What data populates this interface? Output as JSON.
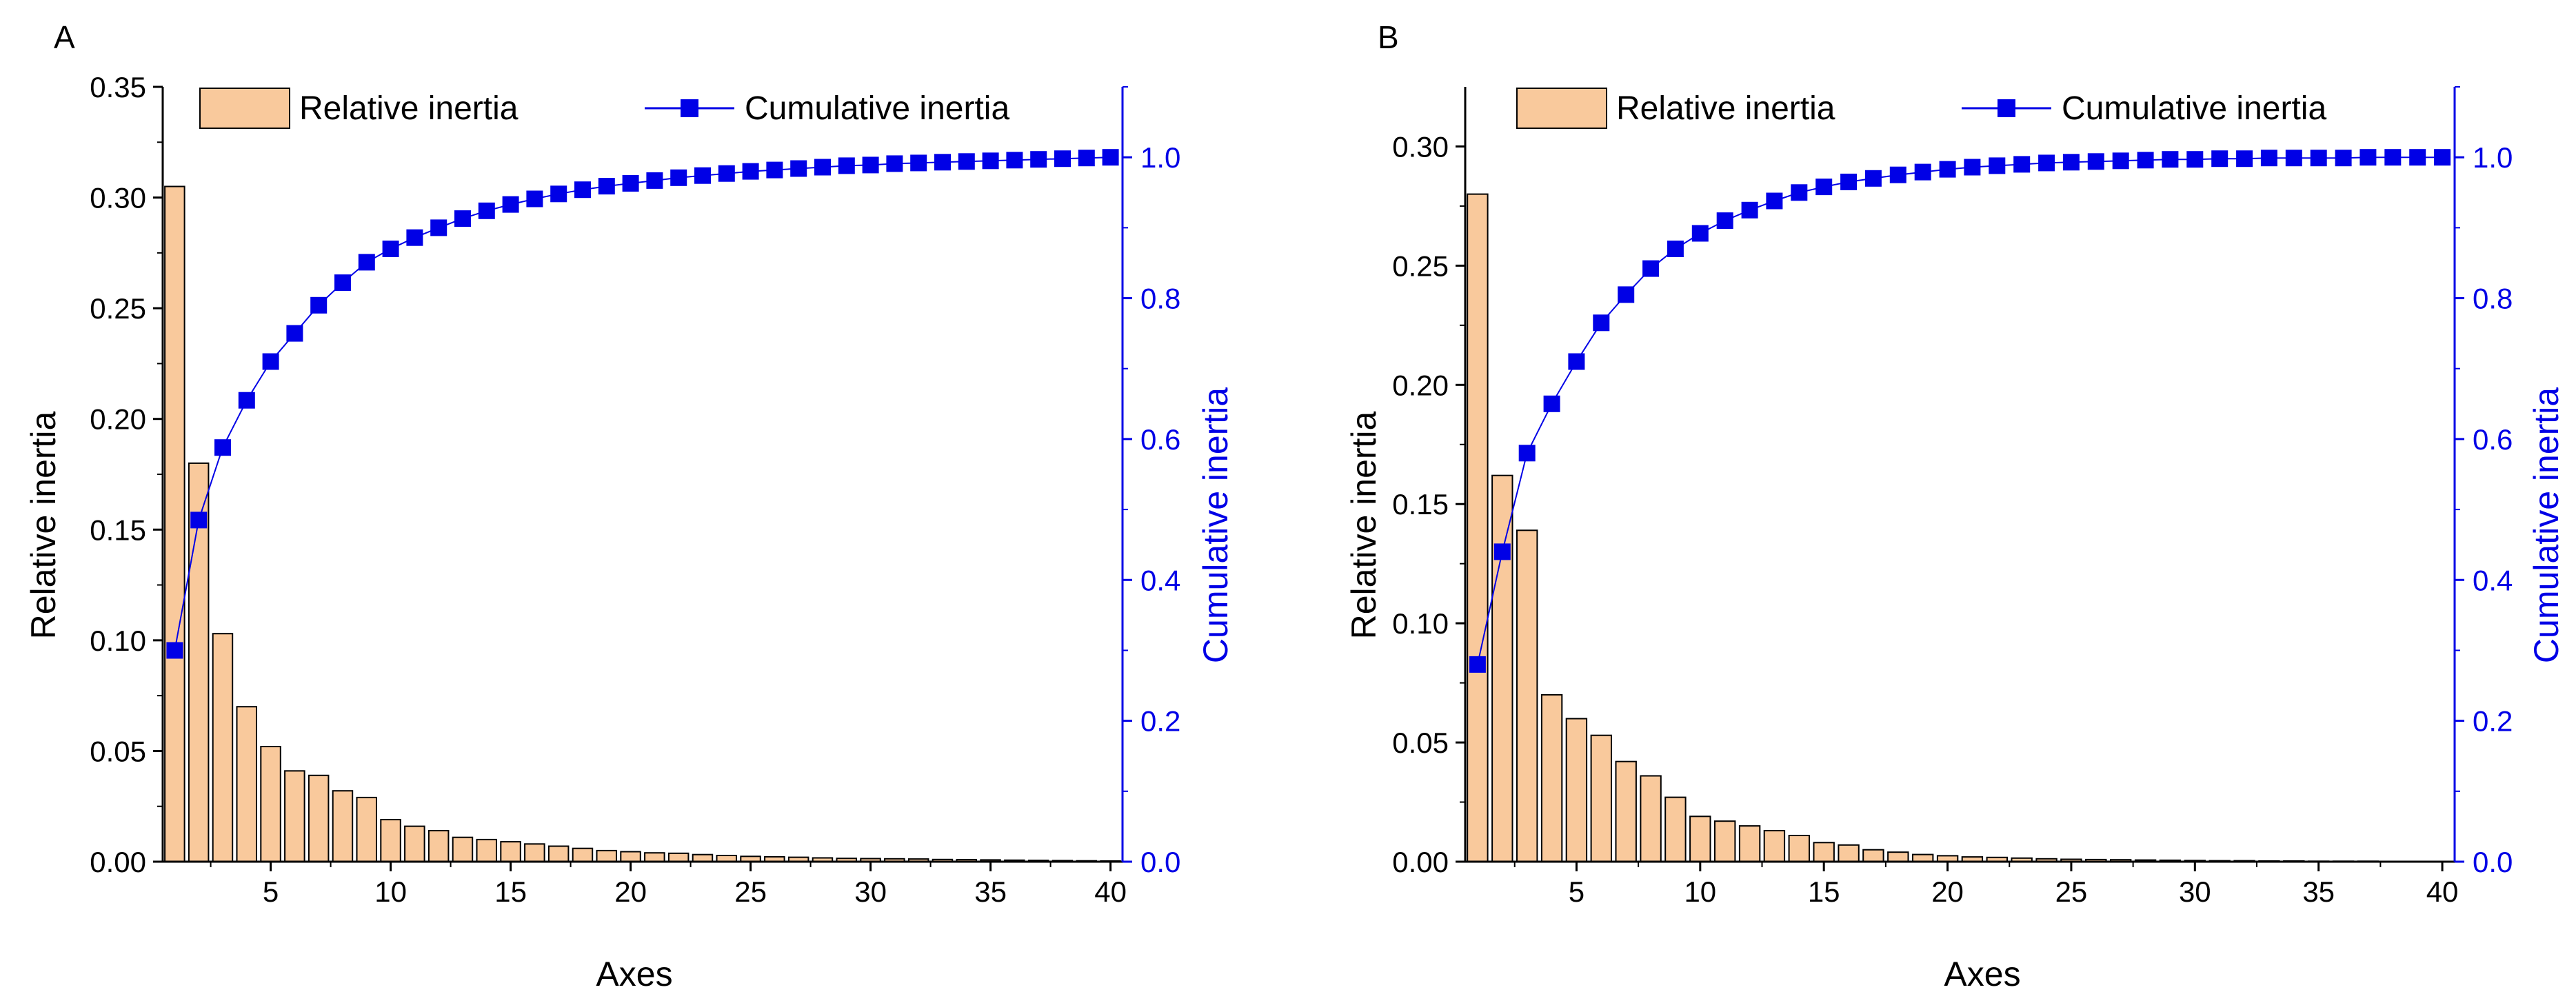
{
  "panels": [
    {
      "label": "A",
      "legend": {
        "bar_label": "Relative inertia",
        "line_label": "Cumulative inertia"
      },
      "bar_color": "#f9c99c",
      "line_color": "#0000e6",
      "left_axis_color": "#000000",
      "right_axis_color": "#0000e6"
    },
    {
      "label": "B",
      "legend": {
        "bar_label": "Relative inertia",
        "line_label": "Cumulative inertia"
      },
      "bar_color": "#f9c99c",
      "line_color": "#0000e6",
      "left_axis_color": "#000000",
      "right_axis_color": "#0000e6"
    }
  ],
  "chart_data": [
    {
      "type": "bar",
      "panel": "A",
      "xlabel": "Axes",
      "ylabel": "Relative inertia",
      "y2label": "Cumulative inertia",
      "xlim": [
        0.5,
        40.5
      ],
      "ylim": [
        0,
        0.35
      ],
      "y2lim": [
        0,
        1.1
      ],
      "xticks": [
        5,
        10,
        15,
        20,
        25,
        30,
        35,
        40
      ],
      "yticks": [
        0.0,
        0.05,
        0.1,
        0.15,
        0.2,
        0.25,
        0.3,
        0.35
      ],
      "ytick_labels": [
        "0.00",
        "0.05",
        "0.10",
        "0.15",
        "0.20",
        "0.25",
        "0.30",
        "0.35"
      ],
      "y2ticks": [
        0.0,
        0.2,
        0.4,
        0.6,
        0.8,
        1.0
      ],
      "y2tick_labels": [
        "0.0",
        "0.2",
        "0.4",
        "0.6",
        "0.8",
        "1.0"
      ],
      "legend_position": "top",
      "x": [
        1,
        2,
        3,
        4,
        5,
        6,
        7,
        8,
        9,
        10,
        11,
        12,
        13,
        14,
        15,
        16,
        17,
        18,
        19,
        20,
        21,
        22,
        23,
        24,
        25,
        26,
        27,
        28,
        29,
        30,
        31,
        32,
        33,
        34,
        35,
        36,
        37,
        38,
        39,
        40
      ],
      "series": [
        {
          "name": "Relative inertia",
          "type": "bar",
          "axis": "left",
          "values": [
            0.305,
            0.18,
            0.103,
            0.07,
            0.052,
            0.041,
            0.039,
            0.032,
            0.029,
            0.019,
            0.016,
            0.014,
            0.011,
            0.01,
            0.009,
            0.008,
            0.007,
            0.006,
            0.005,
            0.0045,
            0.004,
            0.0038,
            0.0032,
            0.0028,
            0.0024,
            0.0022,
            0.002,
            0.0017,
            0.0015,
            0.0014,
            0.0013,
            0.0012,
            0.001,
            0.0009,
            0.0008,
            0.0007,
            0.0006,
            0.0005,
            0.0004,
            0.0003
          ]
        },
        {
          "name": "Cumulative inertia",
          "type": "line",
          "axis": "right",
          "values": [
            0.3,
            0.485,
            0.588,
            0.655,
            0.71,
            0.75,
            0.79,
            0.822,
            0.851,
            0.87,
            0.886,
            0.9,
            0.913,
            0.924,
            0.933,
            0.941,
            0.948,
            0.954,
            0.959,
            0.963,
            0.967,
            0.971,
            0.974,
            0.977,
            0.98,
            0.982,
            0.984,
            0.986,
            0.988,
            0.989,
            0.991,
            0.992,
            0.993,
            0.994,
            0.995,
            0.996,
            0.997,
            0.998,
            0.999,
            1.0
          ]
        }
      ]
    },
    {
      "type": "bar",
      "panel": "B",
      "xlabel": "Axes",
      "ylabel": "Relative inertia",
      "y2label": "Cumulative inertia",
      "xlim": [
        0.5,
        40.5
      ],
      "ylim": [
        0,
        0.325
      ],
      "y2lim": [
        0,
        1.1
      ],
      "xticks": [
        5,
        10,
        15,
        20,
        25,
        30,
        35,
        40
      ],
      "yticks": [
        0.0,
        0.05,
        0.1,
        0.15,
        0.2,
        0.25,
        0.3
      ],
      "ytick_labels": [
        "0.00",
        "0.05",
        "0.10",
        "0.15",
        "0.20",
        "0.25",
        "0.30"
      ],
      "y2ticks": [
        0.0,
        0.2,
        0.4,
        0.6,
        0.8,
        1.0
      ],
      "y2tick_labels": [
        "0.0",
        "0.2",
        "0.4",
        "0.6",
        "0.8",
        "1.0"
      ],
      "legend_position": "top",
      "x": [
        1,
        2,
        3,
        4,
        5,
        6,
        7,
        8,
        9,
        10,
        11,
        12,
        13,
        14,
        15,
        16,
        17,
        18,
        19,
        20,
        21,
        22,
        23,
        24,
        25,
        26,
        27,
        28,
        29,
        30,
        31,
        32,
        33,
        34,
        35,
        36,
        37,
        38,
        39,
        40
      ],
      "series": [
        {
          "name": "Relative inertia",
          "type": "bar",
          "axis": "left",
          "values": [
            0.28,
            0.162,
            0.139,
            0.07,
            0.06,
            0.053,
            0.042,
            0.036,
            0.027,
            0.019,
            0.017,
            0.015,
            0.013,
            0.011,
            0.008,
            0.007,
            0.005,
            0.004,
            0.003,
            0.0025,
            0.002,
            0.0018,
            0.0015,
            0.0012,
            0.001,
            0.0009,
            0.0008,
            0.0007,
            0.0006,
            0.0005,
            0.0004,
            0.0004,
            0.0003,
            0.0003,
            0.0002,
            0.0002,
            0.0002,
            0.0001,
            0.0001,
            0.0001
          ]
        },
        {
          "name": "Cumulative inertia",
          "type": "line",
          "axis": "right",
          "values": [
            0.28,
            0.44,
            0.58,
            0.65,
            0.71,
            0.765,
            0.805,
            0.842,
            0.87,
            0.892,
            0.91,
            0.925,
            0.938,
            0.95,
            0.958,
            0.965,
            0.97,
            0.975,
            0.979,
            0.983,
            0.986,
            0.988,
            0.99,
            0.992,
            0.993,
            0.994,
            0.995,
            0.996,
            0.997,
            0.997,
            0.998,
            0.998,
            0.999,
            0.999,
            0.999,
            0.999,
            1.0,
            1.0,
            1.0,
            1.0
          ]
        }
      ]
    }
  ]
}
